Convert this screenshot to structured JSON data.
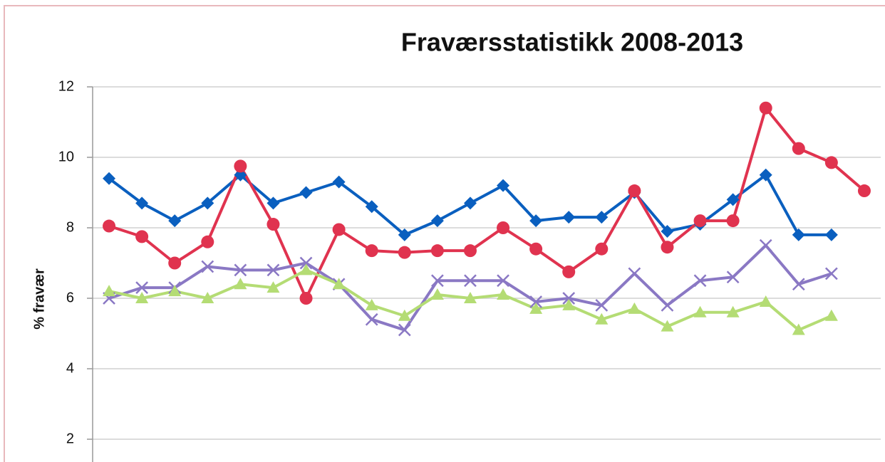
{
  "chart_data": {
    "type": "line",
    "title": "Fraværsstatistikk 2008-2013",
    "y_label": "% fravær",
    "categories": [
      null,
      null,
      null,
      null,
      null,
      null,
      null,
      null,
      null,
      null,
      null,
      null,
      null,
      null,
      null,
      null,
      null,
      null,
      null,
      null,
      null,
      null,
      null,
      null
    ],
    "series": [
      {
        "color": "#0a5fbf",
        "marker": "diamond",
        "values": [
          9.4,
          8.7,
          8.2,
          8.7,
          9.5,
          8.7,
          9.0,
          9.3,
          8.6,
          7.8,
          8.2,
          8.7,
          9.2,
          8.2,
          8.3,
          8.3,
          9.0,
          7.9,
          8.1,
          8.8,
          9.5,
          7.8,
          7.8,
          null
        ]
      },
      {
        "color": "#e0334f",
        "marker": "circle",
        "values": [
          8.05,
          7.75,
          7.0,
          7.6,
          9.75,
          8.1,
          6.0,
          7.95,
          7.35,
          7.3,
          7.35,
          7.35,
          8.0,
          7.4,
          6.75,
          7.4,
          9.05,
          7.45,
          8.2,
          8.2,
          11.4,
          10.25,
          9.85,
          9.05
        ]
      },
      {
        "color": "#8a78c4",
        "marker": "x",
        "values": [
          6.0,
          6.3,
          6.3,
          6.9,
          6.8,
          6.8,
          7.0,
          6.4,
          5.4,
          5.1,
          6.5,
          6.5,
          6.5,
          5.9,
          6.0,
          5.8,
          6.7,
          5.8,
          6.5,
          6.6,
          7.5,
          6.4,
          6.7,
          null
        ]
      },
      {
        "color": "#b4dc74",
        "marker": "triangle",
        "values": [
          6.2,
          6.0,
          6.2,
          6.0,
          6.4,
          6.3,
          6.8,
          6.4,
          5.8,
          5.5,
          6.1,
          6.0,
          6.1,
          5.7,
          5.8,
          5.4,
          5.7,
          5.2,
          5.6,
          5.6,
          5.9,
          5.1,
          5.5,
          null
        ]
      }
    ],
    "ylim": [
      0,
      12
    ],
    "yticks": [
      2,
      4,
      6,
      8,
      10,
      12
    ],
    "grid": true
  }
}
